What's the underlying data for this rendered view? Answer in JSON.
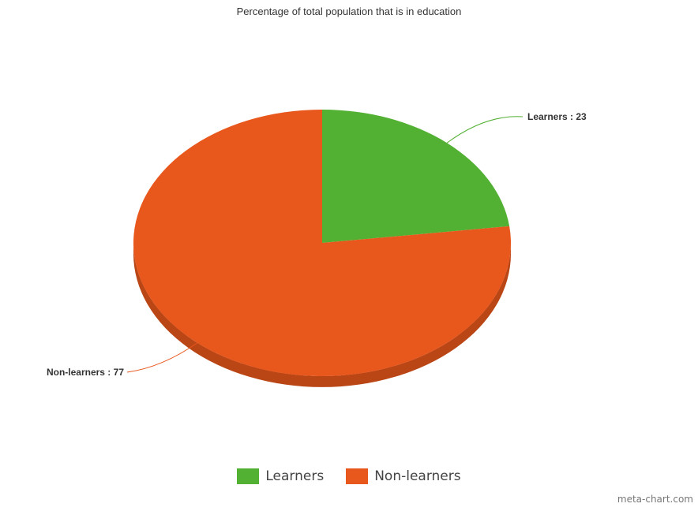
{
  "chart_data": {
    "type": "pie",
    "title": "Percentage of total population that is in education",
    "slices": [
      {
        "label": "Learners",
        "value": 23,
        "color": "#52b033"
      },
      {
        "label": "Non-learners",
        "value": 77,
        "color": "#e8571c"
      }
    ],
    "data_labels": [
      "Learners : 23",
      "Non-learners : 77"
    ],
    "legend": {
      "position": "bottom",
      "items": [
        "Learners",
        "Non-learners"
      ]
    }
  },
  "watermark": "meta-chart.com"
}
